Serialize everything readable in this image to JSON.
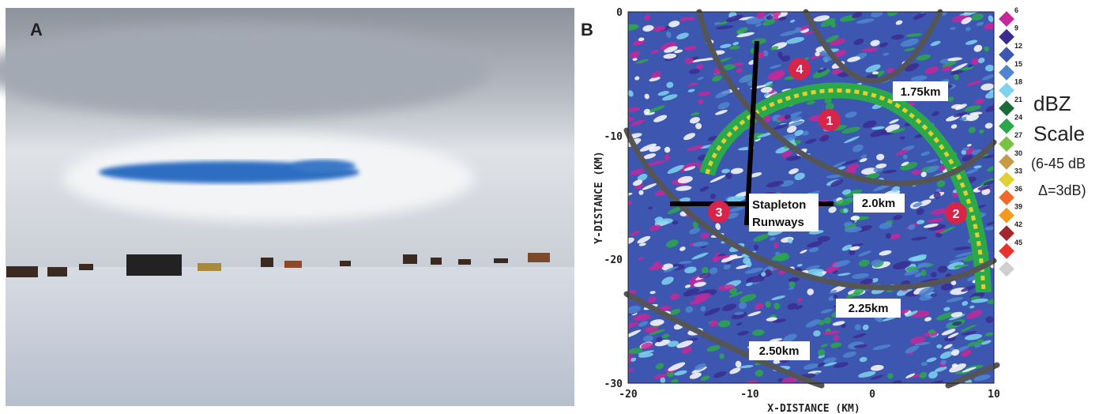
{
  "panel_a": {
    "label": "A"
  },
  "panel_b": {
    "label": "B",
    "x_axis_title": "X-DISTANCE (KM)",
    "y_axis_title": "Y-DISTANCE (KM)",
    "x_tick_labels": [
      "-20",
      "-10",
      "0",
      "10"
    ],
    "y_tick_labels": [
      "0",
      "-10",
      "-20",
      "-30"
    ],
    "regions": [
      "1",
      "2",
      "3",
      "4"
    ],
    "range_labels": [
      "1.75km",
      "2.0km",
      "2.25km",
      "2.50km"
    ],
    "runway_label": [
      "Stapleton",
      "Runways"
    ],
    "scale_title": [
      "dBZ",
      "Scale"
    ],
    "scale_note": [
      "(6-45 dB",
      "Δ=3dB)"
    ],
    "color_scale": [
      {
        "label": "6",
        "color": "#c8279a"
      },
      {
        "label": "9",
        "color": "#3a2b8f"
      },
      {
        "label": "12",
        "color": "#3d57b0"
      },
      {
        "label": "15",
        "color": "#4f86cf"
      },
      {
        "label": "18",
        "color": "#7fd3ef"
      },
      {
        "label": "21",
        "color": "#1e6b3a"
      },
      {
        "label": "24",
        "color": "#2aa84a"
      },
      {
        "label": "27",
        "color": "#7cc242"
      },
      {
        "label": "30",
        "color": "#c79a45"
      },
      {
        "label": "33",
        "color": "#e0d030"
      },
      {
        "label": "36",
        "color": "#ef6a2a"
      },
      {
        "label": "39",
        "color": "#f39a1e"
      },
      {
        "label": "42",
        "color": "#a3262a"
      },
      {
        "label": "45",
        "color": "#e8322b"
      },
      {
        "label": "",
        "color": "#cfcfcf"
      }
    ]
  }
}
